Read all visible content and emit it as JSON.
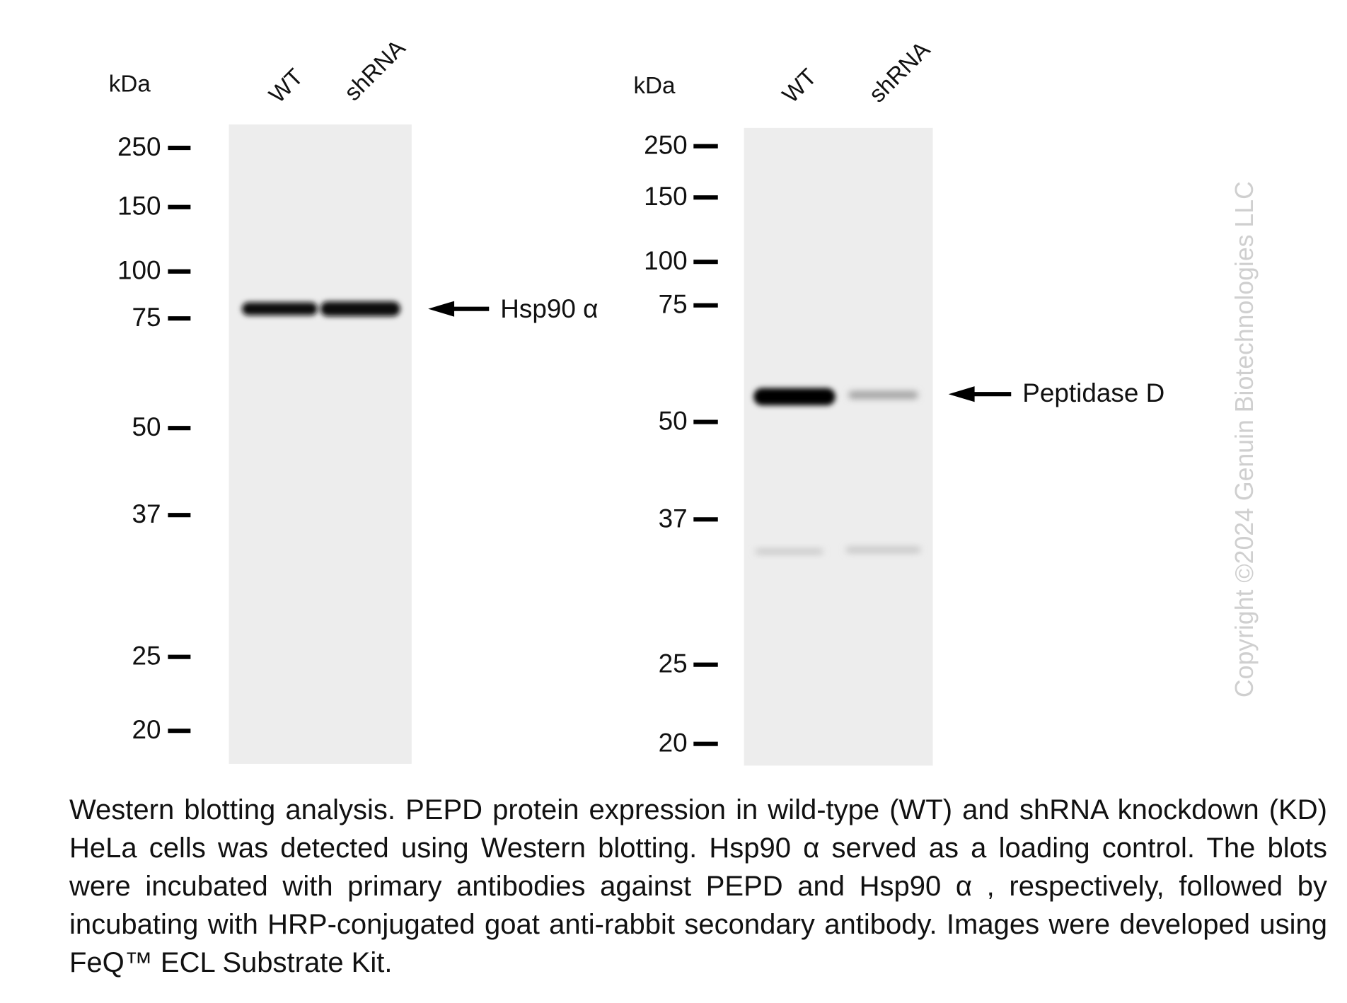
{
  "panels": [
    {
      "unit": "kDa",
      "lanes": [
        "WT",
        "shRNA"
      ],
      "markers": [
        "250",
        "150",
        "100",
        "75",
        "50",
        "37",
        "25",
        "20"
      ],
      "band_label": "Hsp90 α"
    },
    {
      "unit": "kDa",
      "lanes": [
        "WT",
        "shRNA"
      ],
      "markers": [
        "250",
        "150",
        "100",
        "75",
        "50",
        "37",
        "25",
        "20"
      ],
      "band_label": "Peptidase D"
    }
  ],
  "watermark": "Copyright ©2024 Genuin Biotechnologies LLC",
  "caption": "Western blotting analysis. PEPD protein expression in wild-type (WT) and shRNA knockdown (KD) HeLa cells was detected using Western blotting.  Hsp90 α served as a loading control. The blots were incubated with primary antibodies against PEPD and Hsp90 α  , respectively, followed by incubating with HRP-conjugated goat anti-rabbit secondary antibody. Images were developed using FeQ™ ECL Substrate Kit."
}
